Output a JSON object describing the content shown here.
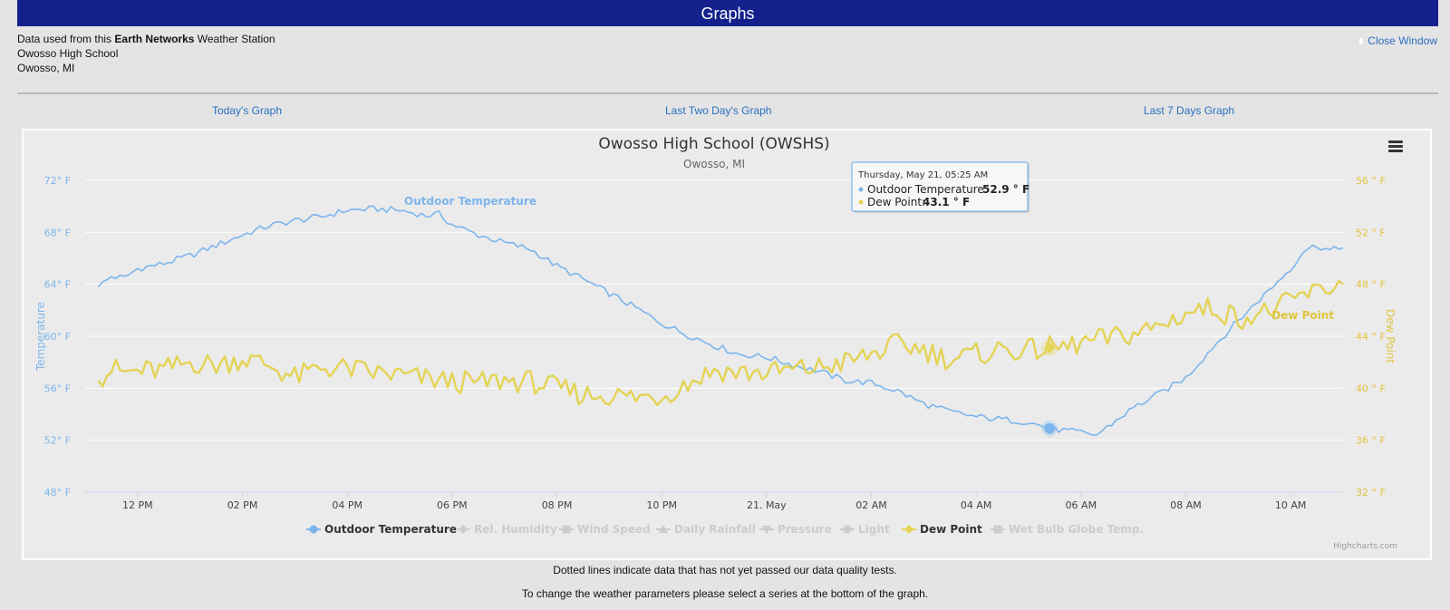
{
  "header": {
    "title": "Graphs"
  },
  "station": {
    "prefix": "Data used from this",
    "network": "Earth Networks",
    "suffix": "Weather Station",
    "name": "Owosso High School",
    "location": "Owosso, MI"
  },
  "close_label": "Close Window",
  "nav": {
    "today": "Today's Graph",
    "two_day": "Last Two Day's Graph",
    "seven_day": "Last 7 Days Graph"
  },
  "notes": {
    "quality": "Dotted lines indicate data that has not yet passed our data quality tests.",
    "series_hint": "To change the weather parameters please select a series at the bottom of the graph."
  },
  "colors": {
    "temperature": "#7cb5ec",
    "dewpoint": "#e4d354",
    "header": "#14218c",
    "link": "#2a6fc0"
  },
  "chart_data": {
    "type": "line",
    "title": "Owosso High School (OWSHS)",
    "subtitle": "Owosso, MI",
    "credit": "Highcharts.com",
    "x_start_hour": 11.0,
    "x_end_hour": 35.0,
    "x_tick_hours": [
      12,
      14,
      16,
      18,
      20,
      22,
      24,
      26,
      28,
      30,
      32,
      34
    ],
    "x_tick_labels": [
      "12 PM",
      "02 PM",
      "04 PM",
      "06 PM",
      "08 PM",
      "10 PM",
      "21. May",
      "02 AM",
      "04 AM",
      "06 AM",
      "08 AM",
      "10 AM"
    ],
    "y_left": {
      "title": "Temperature",
      "min": 48,
      "max": 72,
      "ticks": [
        48,
        52,
        56,
        60,
        64,
        68,
        72
      ],
      "tick_labels": [
        "48° F",
        "52° F",
        "56° F",
        "60° F",
        "64° F",
        "68° F",
        "72° F"
      ]
    },
    "y_right": {
      "title": "Dew Point",
      "min": 32,
      "max": 56,
      "ticks": [
        32,
        36,
        40,
        44,
        48,
        52,
        56
      ],
      "tick_labels": [
        "32 ° F",
        "36 ° F",
        "40 ° F",
        "44 ° F",
        "48 ° F",
        "52 ° F",
        "56 ° F"
      ]
    },
    "series": [
      {
        "name": "Outdoor Temperature",
        "axis": "left",
        "label": "Outdoor Temperature",
        "points": [
          [
            11.25,
            63.8
          ],
          [
            11.5,
            64.6
          ],
          [
            11.75,
            64.5
          ],
          [
            12.0,
            65.2
          ],
          [
            12.5,
            65.6
          ],
          [
            13.0,
            66.2
          ],
          [
            13.5,
            67.0
          ],
          [
            14.0,
            67.8
          ],
          [
            14.5,
            68.5
          ],
          [
            15.0,
            68.9
          ],
          [
            15.5,
            69.2
          ],
          [
            16.0,
            69.7
          ],
          [
            16.5,
            69.8
          ],
          [
            17.0,
            69.7
          ],
          [
            17.5,
            69.3
          ],
          [
            17.75,
            69.4
          ],
          [
            18.0,
            68.6
          ],
          [
            18.5,
            67.8
          ],
          [
            19.0,
            67.2
          ],
          [
            19.5,
            66.7
          ],
          [
            20.0,
            65.4
          ],
          [
            20.5,
            64.4
          ],
          [
            21.0,
            63.3
          ],
          [
            21.5,
            62.2
          ],
          [
            22.0,
            61.0
          ],
          [
            22.5,
            60.1
          ],
          [
            23.0,
            59.3
          ],
          [
            23.5,
            58.6
          ],
          [
            24.0,
            58.4
          ],
          [
            24.5,
            57.8
          ],
          [
            25.0,
            57.3
          ],
          [
            25.5,
            56.6
          ],
          [
            26.0,
            56.4
          ],
          [
            26.5,
            55.8
          ],
          [
            27.0,
            54.8
          ],
          [
            27.5,
            54.2
          ],
          [
            28.0,
            53.8
          ],
          [
            28.5,
            53.6
          ],
          [
            29.0,
            53.4
          ],
          [
            29.4,
            52.9
          ],
          [
            29.75,
            52.7
          ],
          [
            30.0,
            52.6
          ],
          [
            30.3,
            52.4
          ],
          [
            30.5,
            53.0
          ],
          [
            31.0,
            54.5
          ],
          [
            31.5,
            55.6
          ],
          [
            32.0,
            56.8
          ],
          [
            32.5,
            59.1
          ],
          [
            33.0,
            61.2
          ],
          [
            33.5,
            63.2
          ],
          [
            34.0,
            65.2
          ],
          [
            34.25,
            66.6
          ],
          [
            34.5,
            67.0
          ],
          [
            34.75,
            66.6
          ],
          [
            35.0,
            66.8
          ]
        ]
      },
      {
        "name": "Dew Point",
        "axis": "right",
        "label": "Dew Point",
        "points": [
          [
            11.25,
            40.6
          ],
          [
            11.5,
            41.5
          ],
          [
            11.75,
            41.2
          ],
          [
            12.0,
            41.3
          ],
          [
            12.5,
            41.4
          ],
          [
            13.0,
            42.0
          ],
          [
            13.5,
            41.8
          ],
          [
            14.0,
            42.3
          ],
          [
            14.5,
            41.8
          ],
          [
            15.0,
            40.8
          ],
          [
            15.5,
            41.6
          ],
          [
            16.0,
            41.5
          ],
          [
            16.5,
            41.2
          ],
          [
            17.0,
            41.0
          ],
          [
            17.5,
            40.7
          ],
          [
            18.0,
            40.5
          ],
          [
            18.5,
            40.4
          ],
          [
            19.0,
            40.6
          ],
          [
            19.5,
            40.5
          ],
          [
            20.0,
            40.0
          ],
          [
            20.5,
            39.5
          ],
          [
            21.0,
            39.5
          ],
          [
            21.5,
            39.3
          ],
          [
            22.0,
            39.4
          ],
          [
            22.5,
            40.4
          ],
          [
            23.0,
            41.4
          ],
          [
            23.5,
            41.2
          ],
          [
            24.0,
            41.2
          ],
          [
            24.5,
            41.4
          ],
          [
            25.0,
            41.6
          ],
          [
            25.5,
            42.0
          ],
          [
            26.0,
            42.6
          ],
          [
            26.5,
            43.4
          ],
          [
            27.0,
            43.0
          ],
          [
            27.5,
            42.2
          ],
          [
            28.0,
            42.6
          ],
          [
            28.5,
            43.0
          ],
          [
            29.0,
            42.9
          ],
          [
            29.4,
            43.1
          ],
          [
            29.75,
            43.2
          ],
          [
            30.0,
            43.5
          ],
          [
            30.5,
            43.8
          ],
          [
            31.0,
            44.2
          ],
          [
            31.5,
            44.8
          ],
          [
            32.0,
            45.8
          ],
          [
            32.5,
            46.2
          ],
          [
            33.0,
            45.4
          ],
          [
            33.5,
            45.8
          ],
          [
            34.0,
            46.6
          ],
          [
            34.25,
            47.2
          ],
          [
            34.5,
            47.4
          ],
          [
            34.75,
            47.8
          ],
          [
            35.0,
            48.0
          ]
        ]
      }
    ],
    "legend": [
      "Outdoor Temperature",
      "Rel. Humidity",
      "Wind Speed",
      "Daily Rainfall",
      "Pressure",
      "Light",
      "Dew Point",
      "Wet Bulb Globe Temp."
    ],
    "legend_active": [
      true,
      false,
      false,
      false,
      false,
      false,
      true,
      false
    ],
    "tooltip": {
      "time": "Thursday, May 21, 05:25 AM",
      "temp_label": "Outdoor Temperature:",
      "temp_value": "52.9 ° F",
      "dew_label": "Dew Point:",
      "dew_value": "43.1 ° F",
      "hover_hour": 29.4
    }
  }
}
